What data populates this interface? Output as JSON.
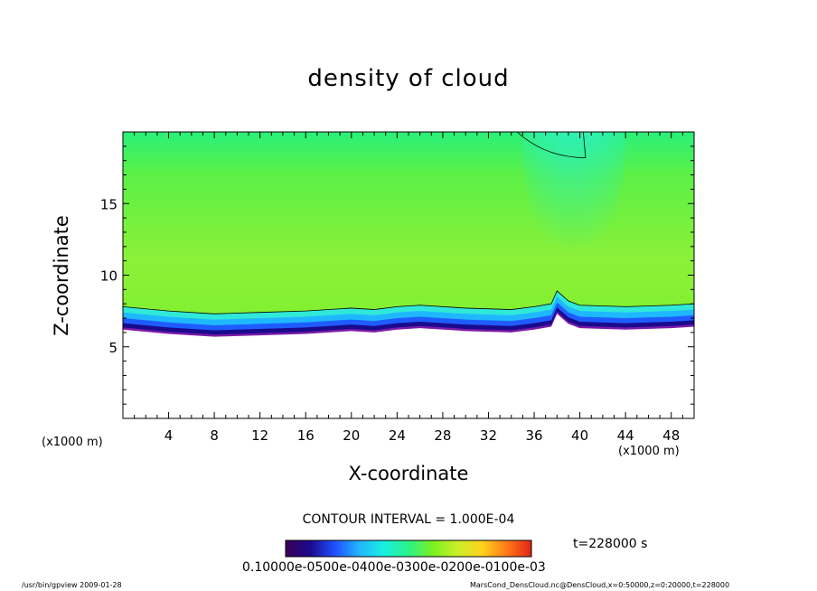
{
  "chart_data": {
    "type": "heatmap",
    "title": "density of cloud",
    "xlabel": "X-coordinate",
    "ylabel": "Z-coordinate",
    "x_unit_left": "(x1000 m)",
    "x_unit_right": "(x1000 m)",
    "xlim": [
      0,
      50
    ],
    "ylim": [
      0,
      20
    ],
    "x_ticks": [
      4,
      8,
      12,
      16,
      20,
      24,
      28,
      32,
      36,
      40,
      44,
      48
    ],
    "y_ticks": [
      5,
      10,
      15
    ],
    "cloud_base_profile_km": {
      "x": [
        0,
        4,
        8,
        12,
        16,
        20,
        22,
        24,
        26,
        30,
        34,
        36,
        37.5,
        38,
        39,
        40,
        44,
        48,
        50
      ],
      "y": [
        6.2,
        5.9,
        5.7,
        5.8,
        5.9,
        6.1,
        6.0,
        6.2,
        6.3,
        6.1,
        6.0,
        6.2,
        6.4,
        7.3,
        6.6,
        6.3,
        6.2,
        6.3,
        6.4
      ]
    },
    "contour_interval": "CONTOUR INTERVAL = 1.000E-04",
    "time": "t=228000 s",
    "colorbar_labels": "0.10000e-0500e-0400e-0300e-0200e-0100e-03",
    "colormap": [
      "#3a0056",
      "#1a0a8c",
      "#1f4fff",
      "#22b6ff",
      "#19f0e0",
      "#2af28a",
      "#7cf020",
      "#c9f028",
      "#ffd21c",
      "#ff7a18",
      "#e02418"
    ]
  },
  "footer": {
    "left": "/usr/bin/gpview   2009-01-28",
    "right": "MarsCond_DensCloud.nc@DensCloud,x=0:50000,z=0:20000,t=228000"
  }
}
